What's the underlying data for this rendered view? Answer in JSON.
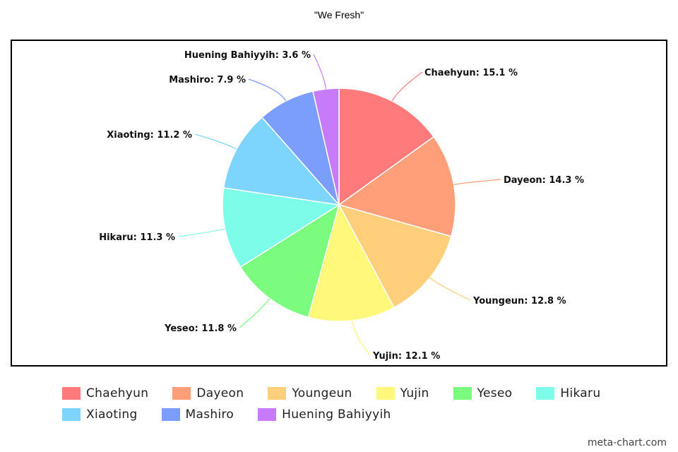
{
  "chart_data": {
    "type": "pie",
    "title": "\"We Fresh\"",
    "slices": [
      {
        "name": "Chaehyun",
        "value": 15.1,
        "color": "#ff7b7b",
        "label": "Chaehyun: 15.1 %"
      },
      {
        "name": "Dayeon",
        "value": 14.3,
        "color": "#ff9f79",
        "label": "Dayeon: 14.3 %"
      },
      {
        "name": "Youngeun",
        "value": 12.8,
        "color": "#ffcf7c",
        "label": "Youngeun: 12.8 %"
      },
      {
        "name": "Yujin",
        "value": 12.1,
        "color": "#fff87a",
        "label": "Yujin: 12.1 %"
      },
      {
        "name": "Yeseo",
        "value": 11.8,
        "color": "#7bfc7e",
        "label": "Yeseo: 11.8 %"
      },
      {
        "name": "Hikaru",
        "value": 11.3,
        "color": "#7dfcea",
        "label": "Hikaru: 11.3 %"
      },
      {
        "name": "Xiaoting",
        "value": 11.2,
        "color": "#7dd4fc",
        "label": "Xiaoting: 11.2 %"
      },
      {
        "name": "Mashiro",
        "value": 7.9,
        "color": "#7b9dfb",
        "label": "Mashiro: 7.9 %"
      },
      {
        "name": "Huening Bahiyyih",
        "value": 3.6,
        "color": "#c77bfa",
        "label": "Huening Bahiyyih: 3.6 %"
      }
    ],
    "legend": {
      "position": "bottom"
    }
  },
  "watermark": "meta-chart.com"
}
